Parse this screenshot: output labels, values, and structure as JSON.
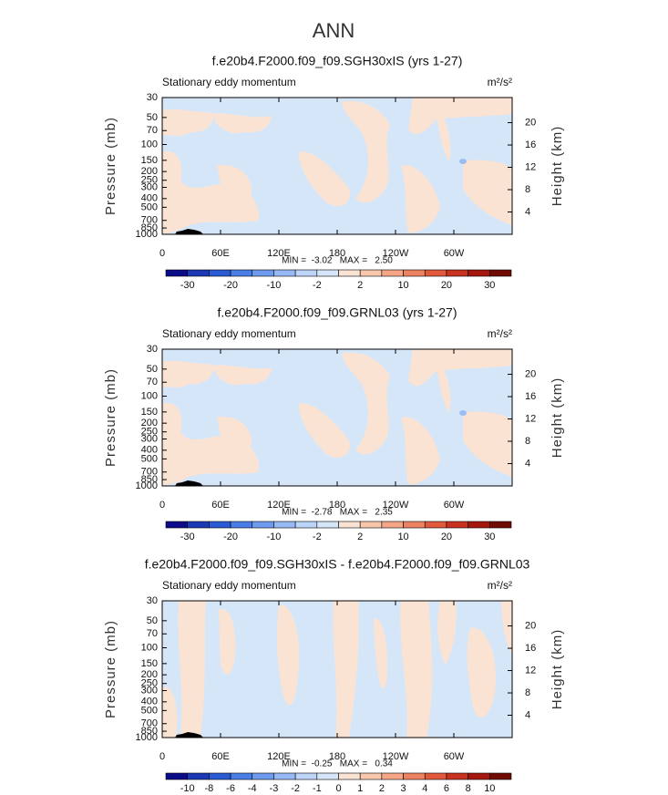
{
  "title": "ANN",
  "chart_data": [
    {
      "type": "contour",
      "title": "f.e20b4.F2000.f09_f09.SGH30xIS (yrs 1-27)",
      "subtitle": "Stationary eddy momentum",
      "units": "m²/s²",
      "ylabel": "Pressure (mb)",
      "y2label": "Height (km)",
      "log": true,
      "ylim": [
        1000,
        30
      ],
      "yticks": [
        30,
        50,
        70,
        100,
        150,
        200,
        250,
        300,
        400,
        500,
        700,
        850,
        1000
      ],
      "y2lim": [
        0,
        24.5
      ],
      "y2ticks": [
        4,
        8,
        12,
        16,
        20
      ],
      "xlim": [
        0,
        360
      ],
      "xticks": [
        0,
        {
          "value": 60,
          "label": "60E"
        },
        {
          "value": 120,
          "label": "120E"
        },
        180,
        {
          "value": 240,
          "label": "120W"
        },
        {
          "value": 300,
          "label": "60W"
        }
      ],
      "stats": "MIN =  -3.02   MAX =   2.50",
      "colorbar": {
        "colors": [
          "#0c0c8a",
          "#1b38b5",
          "#2b5bd3",
          "#4a7de6",
          "#6f9bef",
          "#97b9f4",
          "#bcd4f8",
          "#d6e6f9",
          "#fbe3d3",
          "#f8c7ab",
          "#f4a686",
          "#ed8262",
          "#e0593d",
          "#c93220",
          "#a5170e",
          "#720a04"
        ],
        "levels": [
          -30,
          null,
          -20,
          null,
          -10,
          null,
          -2,
          null,
          2,
          null,
          10,
          null,
          20,
          null,
          30
        ]
      }
    },
    {
      "type": "contour",
      "title": "f.e20b4.F2000.f09_f09.GRNL03 (yrs 1-27)",
      "subtitle": "Stationary eddy momentum",
      "units": "m²/s²",
      "ylabel": "Pressure (mb)",
      "y2label": "Height (km)",
      "log": true,
      "ylim": [
        1000,
        30
      ],
      "yticks": [
        30,
        50,
        70,
        100,
        150,
        200,
        250,
        300,
        400,
        500,
        700,
        850,
        1000
      ],
      "y2lim": [
        0,
        24.5
      ],
      "y2ticks": [
        4,
        8,
        12,
        16,
        20
      ],
      "xlim": [
        0,
        360
      ],
      "xticks": [
        0,
        {
          "value": 60,
          "label": "60E"
        },
        {
          "value": 120,
          "label": "120E"
        },
        180,
        {
          "value": 240,
          "label": "120W"
        },
        {
          "value": 300,
          "label": "60W"
        }
      ],
      "stats": "MIN =  -2.78   MAX =   2.35",
      "colorbar": {
        "colors": [
          "#0c0c8a",
          "#1b38b5",
          "#2b5bd3",
          "#4a7de6",
          "#6f9bef",
          "#97b9f4",
          "#bcd4f8",
          "#d6e6f9",
          "#fbe3d3",
          "#f8c7ab",
          "#f4a686",
          "#ed8262",
          "#e0593d",
          "#c93220",
          "#a5170e",
          "#720a04"
        ],
        "levels": [
          -30,
          null,
          -20,
          null,
          -10,
          null,
          -2,
          null,
          2,
          null,
          10,
          null,
          20,
          null,
          30
        ]
      }
    },
    {
      "type": "contour",
      "title": "f.e20b4.F2000.f09_f09.SGH30xIS - f.e20b4.F2000.f09_f09.GRNL03",
      "subtitle": "Stationary eddy momentum",
      "units": "m²/s²",
      "ylabel": "Pressure (mb)",
      "y2label": "Height (km)",
      "log": true,
      "ylim": [
        1000,
        30
      ],
      "yticks": [
        30,
        50,
        70,
        100,
        150,
        200,
        250,
        300,
        400,
        500,
        700,
        850,
        1000
      ],
      "y2lim": [
        0,
        24.5
      ],
      "y2ticks": [
        4,
        8,
        12,
        16,
        20
      ],
      "xlim": [
        0,
        360
      ],
      "xticks": [
        0,
        {
          "value": 60,
          "label": "60E"
        },
        {
          "value": 120,
          "label": "120E"
        },
        180,
        {
          "value": 240,
          "label": "120W"
        },
        {
          "value": 300,
          "label": "60W"
        }
      ],
      "stats": "MIN =  -0.25   MAX =   0.34",
      "colorbar": {
        "colors": [
          "#0c0c8a",
          "#1b38b5",
          "#2b5bd3",
          "#4a7de6",
          "#6f9bef",
          "#97b9f4",
          "#bcd4f8",
          "#d6e6f9",
          "#fbe3d3",
          "#f8c7ab",
          "#f4a686",
          "#ed8262",
          "#e0593d",
          "#c93220",
          "#a5170e",
          "#720a04"
        ],
        "levels": [
          -10,
          -8,
          -6,
          -4,
          -3,
          -2,
          -1,
          0,
          1,
          2,
          3,
          4,
          6,
          8,
          10
        ]
      }
    }
  ]
}
